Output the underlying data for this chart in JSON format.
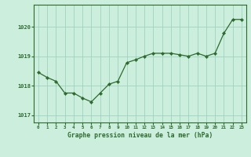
{
  "hours": [
    0,
    1,
    2,
    3,
    4,
    5,
    6,
    7,
    8,
    9,
    10,
    11,
    12,
    13,
    14,
    15,
    16,
    17,
    18,
    19,
    20,
    21,
    22,
    23
  ],
  "pressure": [
    1018.45,
    1018.28,
    1018.15,
    1017.75,
    1017.75,
    1017.58,
    1017.45,
    1017.75,
    1018.05,
    1018.15,
    1018.78,
    1018.88,
    1019.0,
    1019.1,
    1019.1,
    1019.1,
    1019.05,
    1019.0,
    1019.1,
    1019.0,
    1019.1,
    1019.78,
    1020.25,
    1020.25
  ],
  "line_color": "#2d6a2d",
  "marker_color": "#2d6a2d",
  "bg_color": "#cceedd",
  "grid_color": "#99ccbb",
  "xlabel": "Graphe pression niveau de la mer (hPa)",
  "xlabel_color": "#2d6a2d",
  "tick_color": "#2d6a2d",
  "axis_label_color": "#2d6a2d",
  "ylim": [
    1016.75,
    1020.75
  ],
  "yticks": [
    1017,
    1018,
    1019,
    1020
  ],
  "spine_color": "#2d6a2d"
}
